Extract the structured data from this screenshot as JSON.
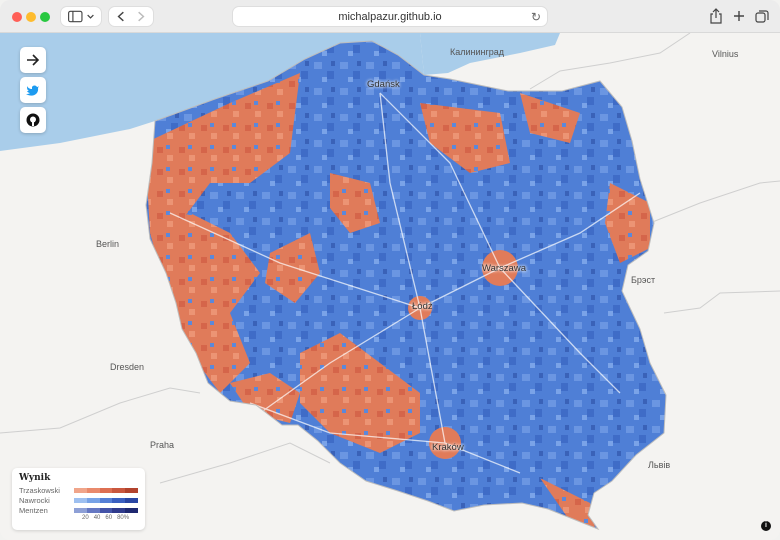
{
  "browser": {
    "url": "michalpazur.github.io"
  },
  "map": {
    "cities": {
      "gdansk": "Gdańsk",
      "kaliningrad": "Калининград",
      "vilnius": "Vilnius",
      "berlin": "Berlin",
      "warszawa": "Warszawa",
      "lodz": "Łódź",
      "brest": "Брэст",
      "dresden": "Dresden",
      "praha": "Praha",
      "krakow": "Kraków",
      "lviv": "Львів"
    },
    "colors": {
      "water": "#a9cdea",
      "land": "#f4f3f1",
      "trzaskowski": "#e07b5a",
      "nawrocki": "#4f7fd6"
    }
  },
  "controls": {
    "share_icon": "arrow-right-icon",
    "twitter_icon": "twitter-icon",
    "github_icon": "github-icon"
  },
  "legend": {
    "title": "Wynik",
    "rows": [
      {
        "name": "Trzaskowski",
        "colors": [
          "#f0a58a",
          "#e98a6c",
          "#dd6f52",
          "#c9573e",
          "#b2432d"
        ]
      },
      {
        "name": "Nawrocki",
        "colors": [
          "#9ec0f0",
          "#78a3e6",
          "#557fd6",
          "#3a5fc0",
          "#2a46a3"
        ]
      },
      {
        "name": "Mentzen",
        "colors": [
          "#8ea0d6",
          "#6577c2",
          "#4453a8",
          "#2f3a8c",
          "#1e2870"
        ]
      }
    ],
    "ticks": [
      "20",
      "40",
      "60",
      "80%"
    ]
  }
}
